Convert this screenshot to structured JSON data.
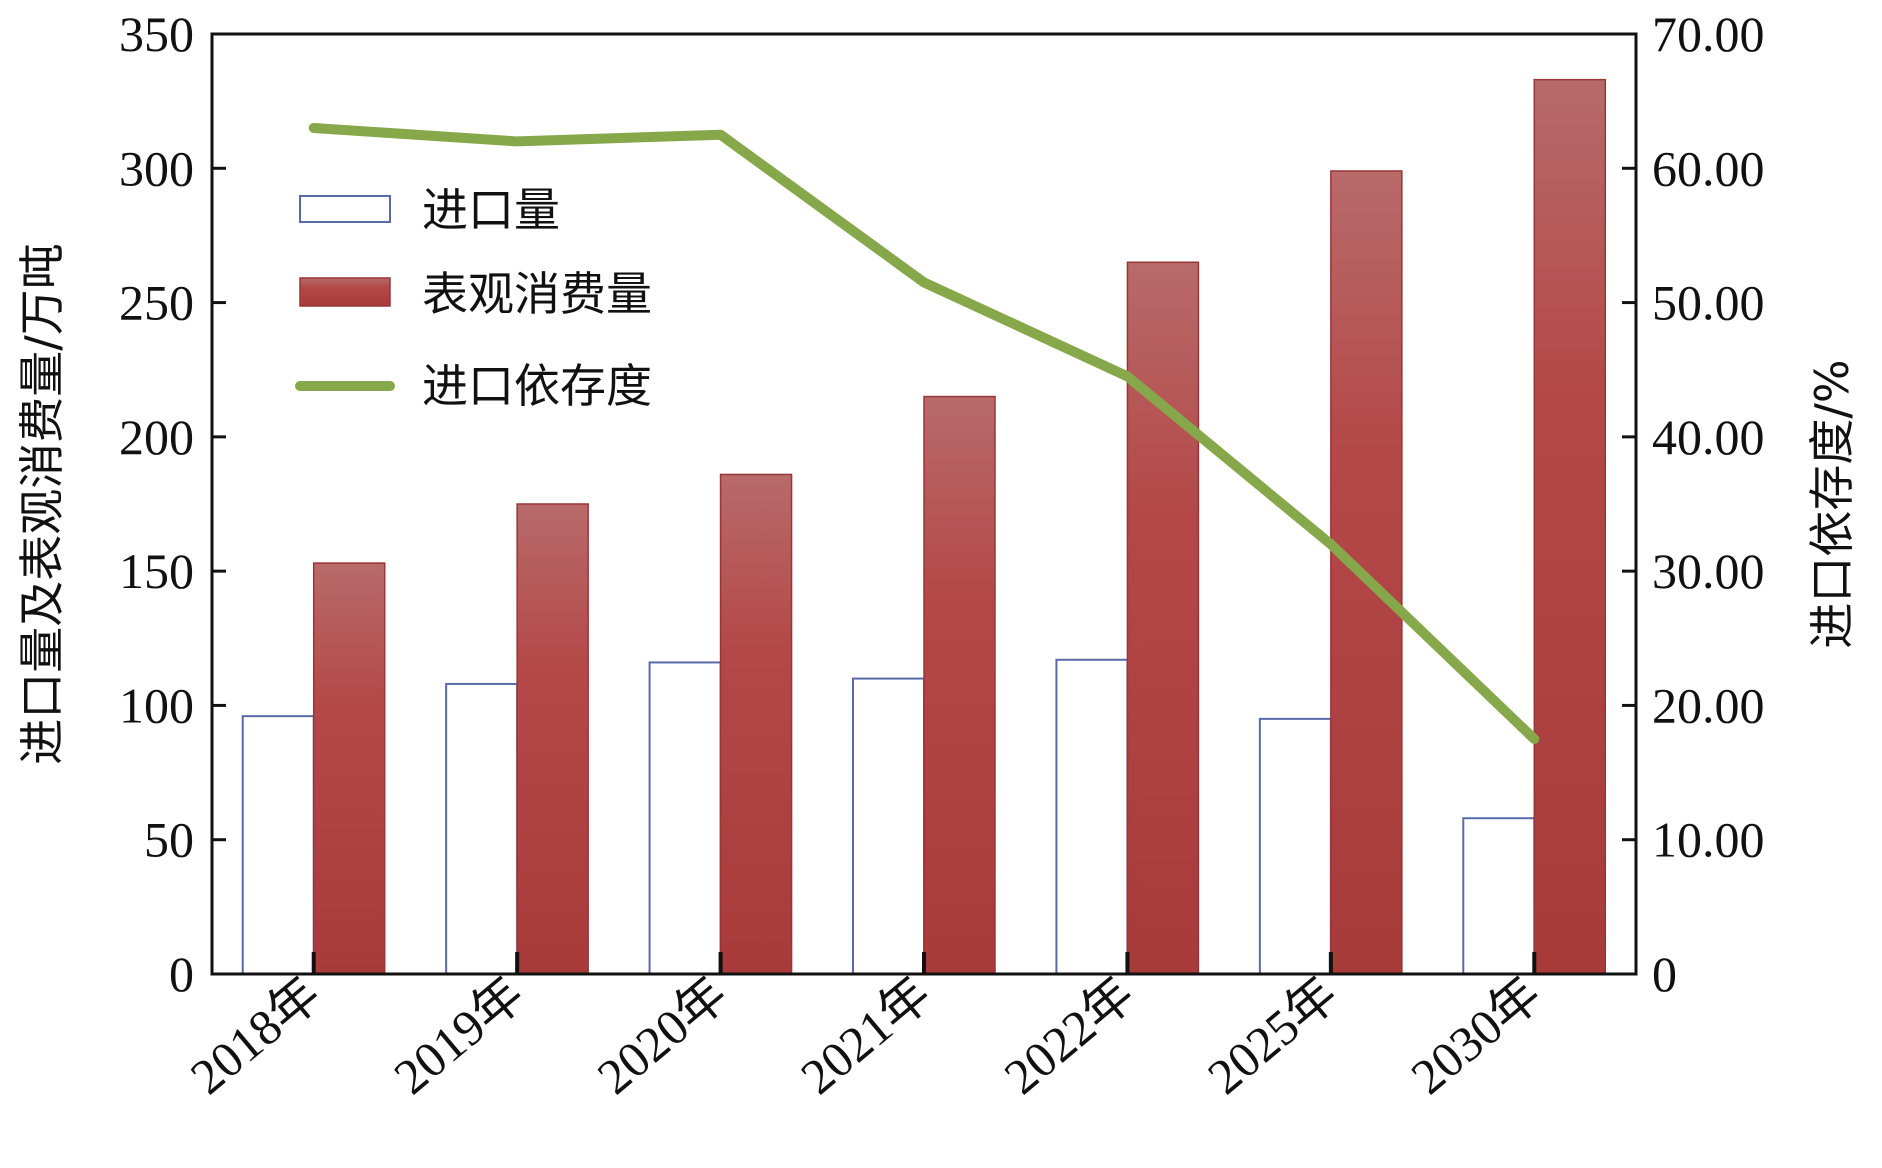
{
  "chart_data": {
    "type": "bar",
    "categories": [
      "2018年",
      "2019年",
      "2020年",
      "2021年",
      "2022年",
      "2025年",
      "2030年"
    ],
    "series": [
      {
        "name": "进口量",
        "type": "bar",
        "axis": "left",
        "values": [
          96,
          108,
          116,
          110,
          117,
          95,
          58
        ]
      },
      {
        "name": "表观消费量",
        "type": "bar",
        "axis": "left",
        "values": [
          153,
          175,
          186,
          215,
          265,
          299,
          333
        ]
      },
      {
        "name": "进口依存度",
        "type": "line",
        "axis": "right",
        "values": [
          63.0,
          62.0,
          62.5,
          51.5,
          44.5,
          32.0,
          17.5
        ]
      }
    ],
    "ylabel": "进口量及表观消费量/万吨",
    "y2label": "进口依存度/%",
    "ylim": [
      0,
      350
    ],
    "y2lim": [
      0,
      70
    ],
    "yticks": [
      "0",
      "50",
      "100",
      "150",
      "200",
      "250",
      "300",
      "350"
    ],
    "y2ticks": [
      "0",
      "10.00",
      "20.00",
      "30.00",
      "40.00",
      "50.00",
      "60.00",
      "70.00"
    ],
    "legend_position": "top-left",
    "grid": false,
    "colors": {
      "import_bar_fill": "#ffffff",
      "import_bar_edge": "#5a6aa8",
      "consumption_top": "#b86a6a",
      "consumption_bottom": "#a83a3a",
      "line": "#86a84a"
    }
  }
}
